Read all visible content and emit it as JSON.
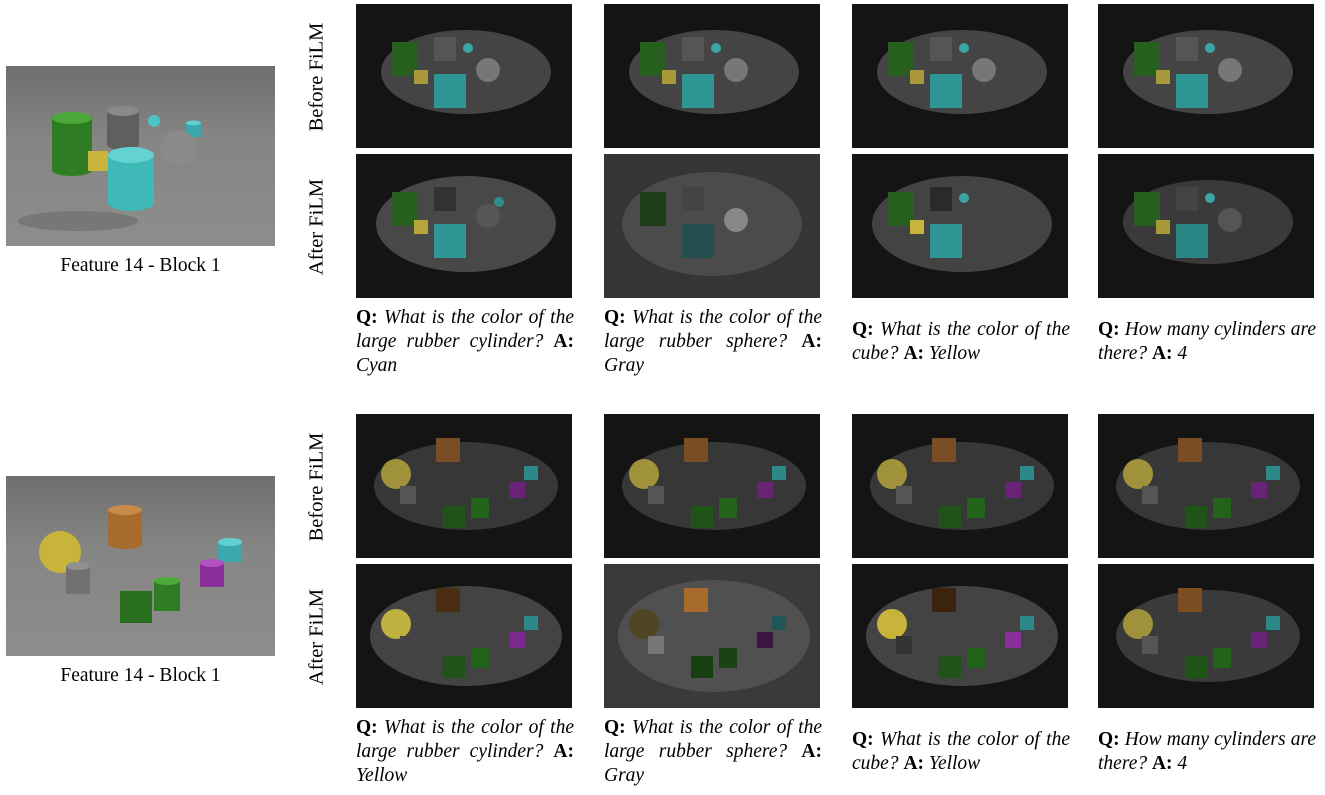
{
  "row_labels": {
    "before": "Before FiLM",
    "after": "After FiLM"
  },
  "groups": [
    {
      "feature_label": "Feature 14 - Block 1",
      "captions": [
        {
          "q_label": "Q:",
          "question": "What is the color of the large rubber cylinder?",
          "a_label": "A:",
          "answer": "Cyan"
        },
        {
          "q_label": "Q:",
          "question": "What is the color of the large rubber sphere?",
          "a_label": "A:",
          "answer": "Gray"
        },
        {
          "q_label": "Q:",
          "question": "What is the color of the cube?",
          "a_label": "A:",
          "answer": "Yellow"
        },
        {
          "q_label": "Q:",
          "question": "How many cylinders are there?",
          "a_label": "A:",
          "answer": "4"
        }
      ]
    },
    {
      "feature_label": "Feature 14 - Block 1",
      "captions": [
        {
          "q_label": "Q:",
          "question": "What is the color of the large rubber cylinder?",
          "a_label": "A:",
          "answer": "Yellow"
        },
        {
          "q_label": "Q:",
          "question": "What is the color of the large rubber sphere?",
          "a_label": "A:",
          "answer": "Gray"
        },
        {
          "q_label": "Q:",
          "question": "What is the color of the cube?",
          "a_label": "A:",
          "answer": "Yellow"
        },
        {
          "q_label": "Q:",
          "question": "How many cylinders are there?",
          "a_label": "A:",
          "answer": "4"
        }
      ]
    }
  ],
  "colors": {
    "green": "#2e7d22",
    "gray_metal": "#6e6e6e",
    "cyan": "#3fb8b8",
    "yellow": "#c8b43a",
    "gray_sphere": "#8a8a8a",
    "orange": "#a86b2e",
    "purple": "#8a2e9c",
    "heatmap_bg": "#141414"
  }
}
